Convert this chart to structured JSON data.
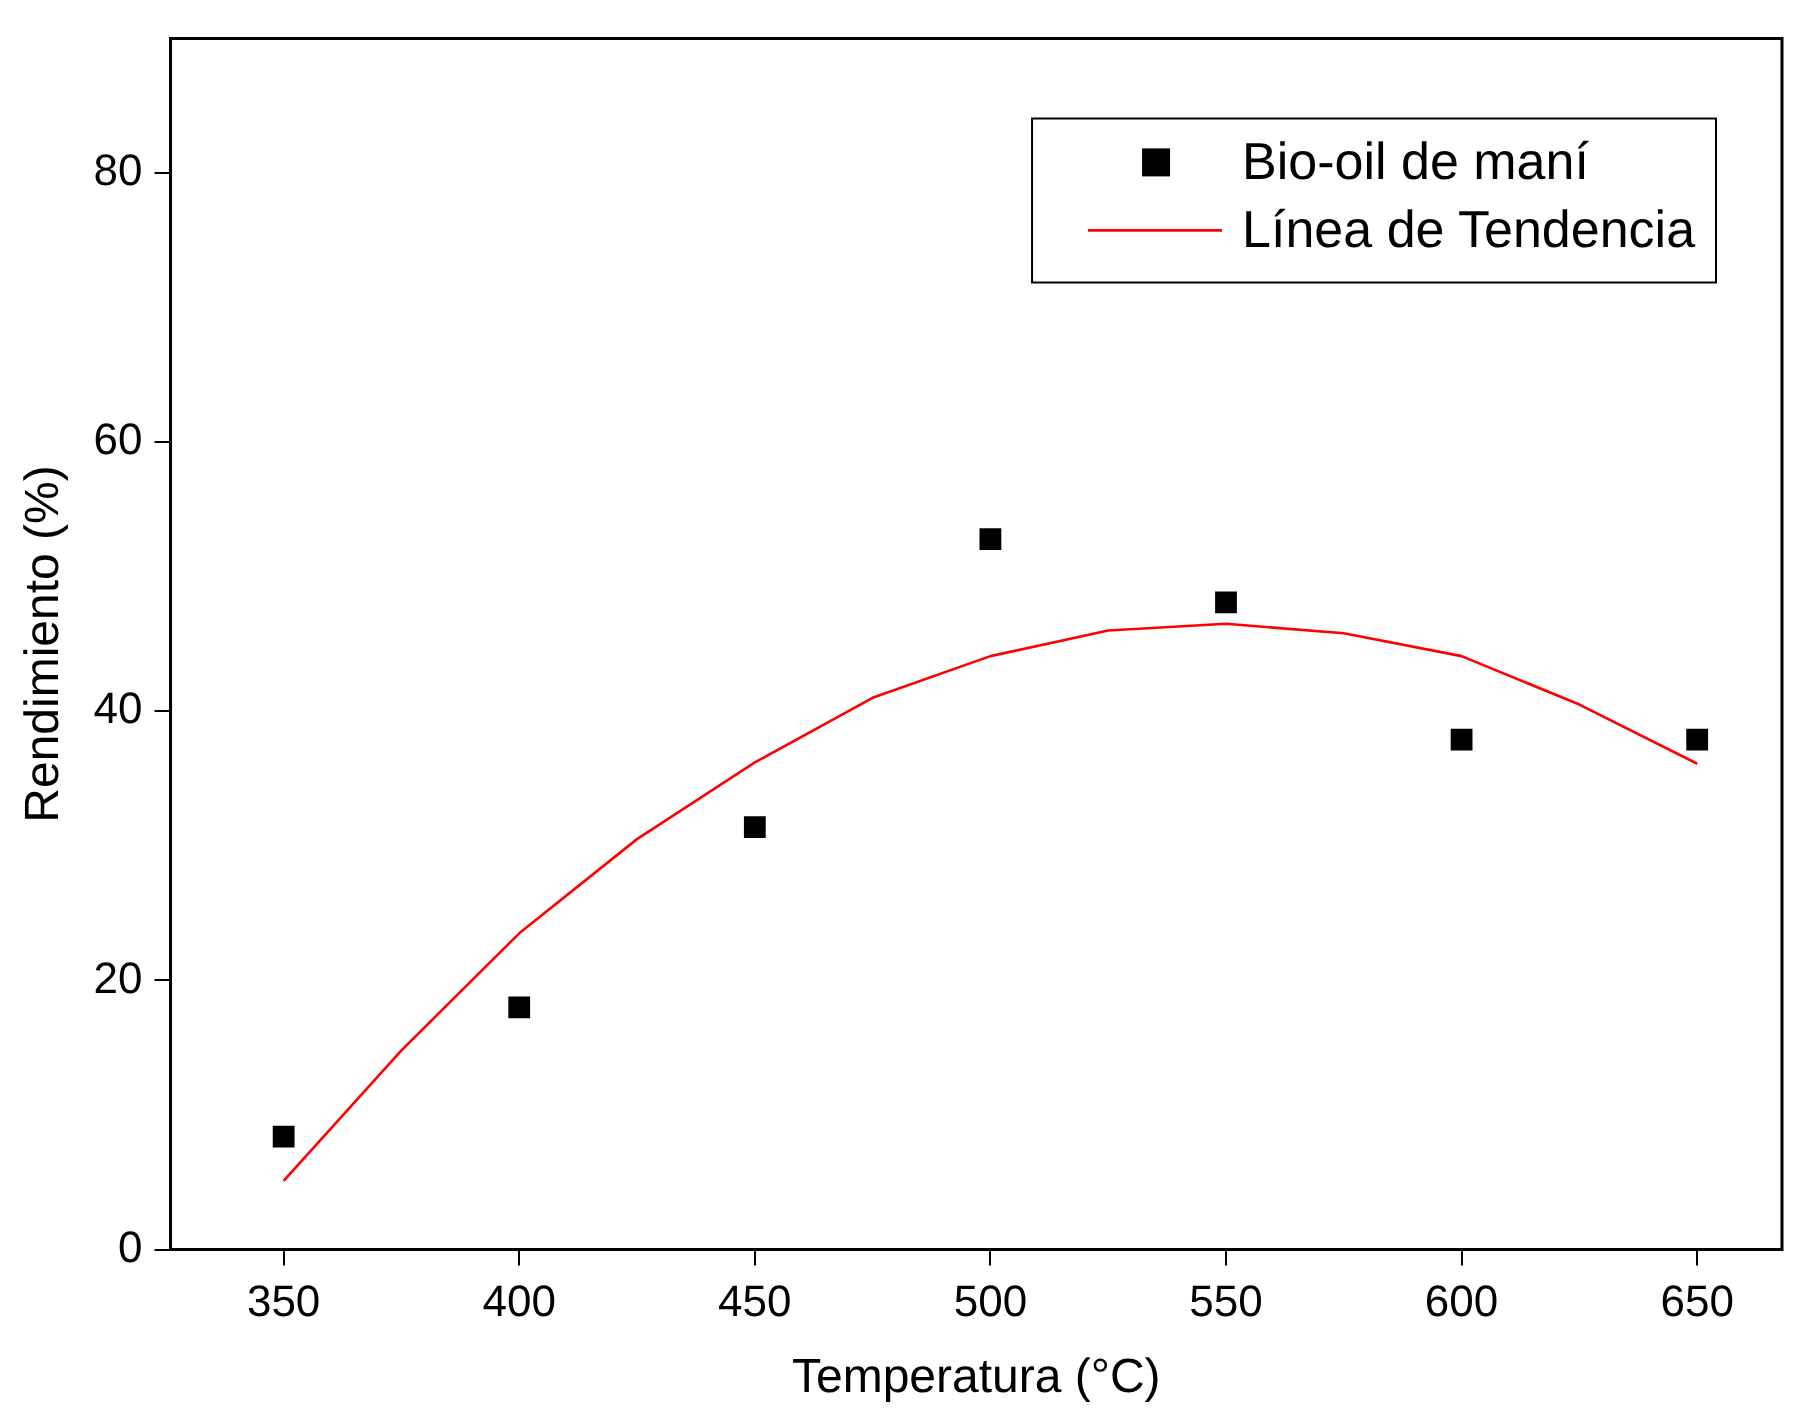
{
  "chart_data": {
    "type": "scatter",
    "xlabel": "Temperatura (°C)",
    "ylabel": "Rendimiento (%)",
    "xlim": [
      326,
      668
    ],
    "xticks": [
      350,
      400,
      450,
      500,
      550,
      600,
      650
    ],
    "ylim": [
      0,
      90
    ],
    "yticks": [
      0,
      20,
      40,
      60,
      80
    ],
    "grid": false,
    "legend": "top right",
    "series": [
      {
        "name": "Bio-oil de maní",
        "marker": "square",
        "color": "#000000",
        "x": [
          350,
          400,
          450,
          500,
          550,
          600,
          650
        ],
        "values": [
          8.4,
          18.0,
          31.4,
          52.8,
          48.1,
          37.9,
          37.9
        ]
      },
      {
        "name": "Línea de Tendencia",
        "type": "line",
        "marker": "none",
        "line_style": "solid",
        "color": "#ff0000",
        "x": [
          350,
          375,
          400,
          425,
          450,
          475,
          500,
          525,
          550,
          575,
          600,
          625,
          650
        ],
        "values": [
          5.1,
          14.8,
          23.5,
          30.5,
          36.2,
          41,
          44.1,
          46,
          46.5,
          45.8,
          44.1,
          40.5,
          36.1
        ]
      }
    ]
  }
}
